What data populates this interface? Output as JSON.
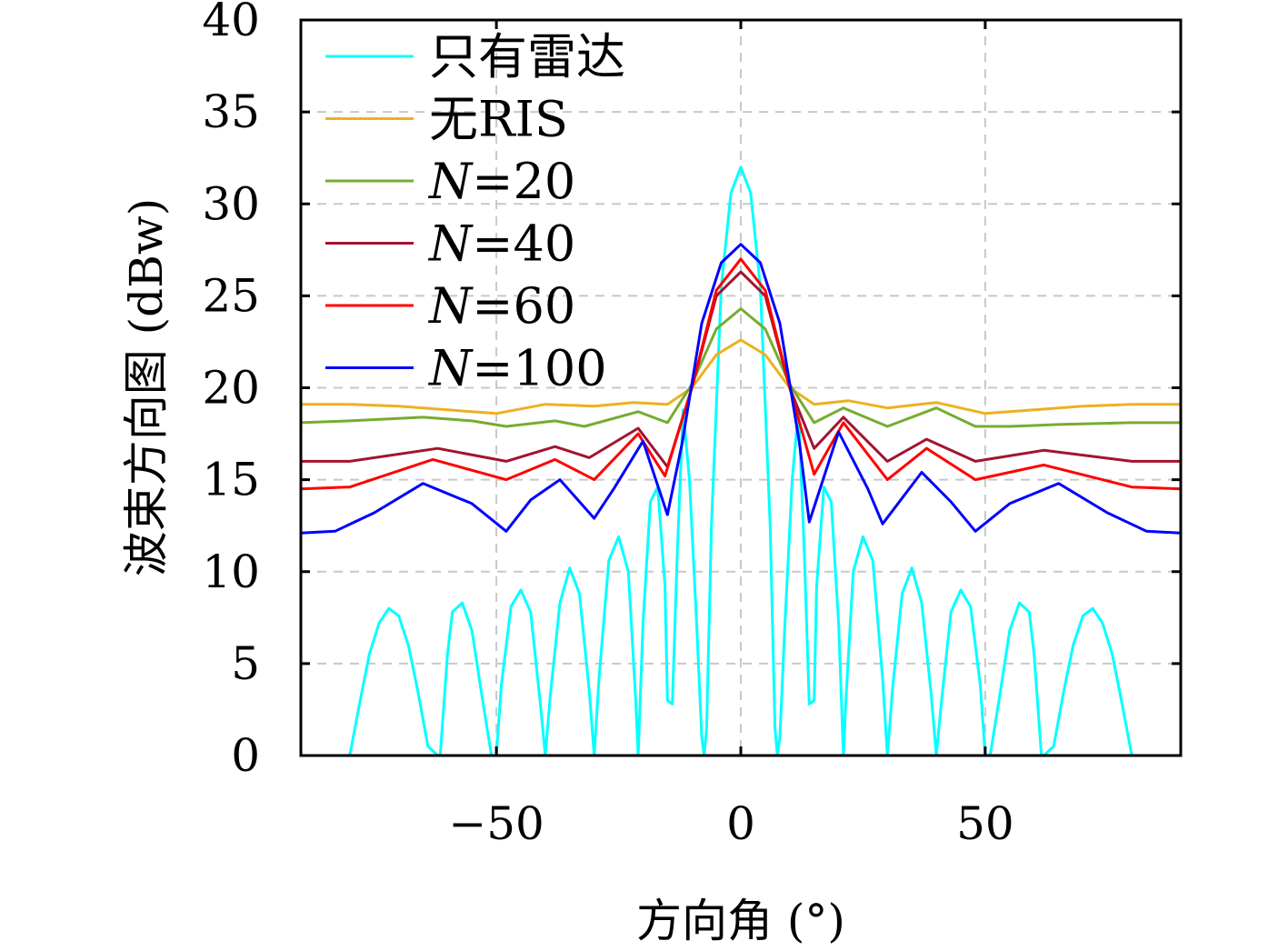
{
  "chart_data": {
    "type": "line",
    "title": "",
    "xlabel": "方向角 (°)",
    "ylabel": "波束方向图 (dBw)",
    "xlim": [
      -90,
      90
    ],
    "ylim": [
      0,
      40
    ],
    "xticks": [
      -50,
      0,
      50
    ],
    "xtick_labels": [
      "−50",
      "0",
      "50"
    ],
    "yticks": [
      0,
      5,
      10,
      15,
      20,
      25,
      30,
      35,
      40
    ],
    "ytick_labels": [
      "0",
      "5",
      "10",
      "15",
      "20",
      "25",
      "30",
      "35",
      "40"
    ],
    "grid": true,
    "legend_position": "top-left",
    "series": [
      {
        "name": "只有雷达",
        "color": "#00ffff",
        "x": [
          -80,
          -78,
          -76,
          -74,
          -72,
          -70,
          -68,
          -66,
          -64,
          -62,
          -61.5,
          -60,
          -59,
          -57,
          -55,
          -53,
          -51,
          -50,
          -49,
          -47,
          -45,
          -43,
          -41,
          -40,
          -39,
          -37,
          -35,
          -33,
          -31,
          -30,
          -29,
          -27,
          -25,
          -23,
          -21.5,
          -21,
          -20,
          -18.5,
          -17,
          -15.5,
          -15,
          -14,
          -13,
          -11.8,
          -10.5,
          -9,
          -8,
          -7.5,
          -7,
          -6,
          -4,
          -2,
          0,
          2,
          4,
          6,
          7,
          7.5,
          8,
          9,
          10.5,
          11.8,
          13,
          14,
          15,
          15.5,
          17,
          18.5,
          20,
          21,
          21.5,
          23,
          25,
          27,
          29,
          30,
          31,
          33,
          35,
          37,
          39,
          40,
          41,
          43,
          45,
          47,
          49,
          50,
          51,
          53,
          55,
          57,
          59,
          60,
          61.5,
          62,
          64,
          66,
          68,
          70,
          72,
          74,
          76,
          78,
          80
        ],
        "y": [
          0,
          2.8,
          5.5,
          7.2,
          8.0,
          7.6,
          6.0,
          3.4,
          0.5,
          0,
          0,
          5.5,
          7.8,
          8.3,
          6.8,
          3.3,
          0,
          0,
          3.8,
          8.1,
          9.0,
          7.8,
          2.8,
          0,
          3.2,
          8.3,
          10.2,
          8.8,
          3.5,
          0,
          4.2,
          10.6,
          11.9,
          10.0,
          3.0,
          0,
          7.2,
          13.8,
          14.6,
          9.2,
          3.0,
          2.8,
          11.0,
          18.8,
          15.0,
          7.0,
          1.0,
          0,
          1.5,
          12.5,
          25.5,
          30.6,
          32.0,
          30.6,
          25.5,
          12.5,
          1.5,
          0,
          1.0,
          7.0,
          15.0,
          18.8,
          11.0,
          2.8,
          3.0,
          9.2,
          14.6,
          13.8,
          7.2,
          0,
          3.0,
          10.0,
          11.9,
          10.6,
          4.2,
          0,
          3.5,
          8.8,
          10.2,
          8.3,
          3.2,
          0,
          2.8,
          7.8,
          9.0,
          8.1,
          3.8,
          0,
          0,
          3.3,
          6.8,
          8.3,
          7.8,
          5.5,
          0,
          0,
          0.5,
          3.4,
          6.0,
          7.6,
          8.0,
          7.2,
          5.5,
          2.8,
          0
        ]
      },
      {
        "name": "无RIS",
        "color": "#edb120",
        "x": [
          -90,
          -80,
          -70,
          -60,
          -50,
          -40,
          -30,
          -22,
          -15,
          -10,
          -5,
          0,
          5,
          10,
          15,
          22,
          30,
          40,
          50,
          60,
          70,
          80,
          90
        ],
        "y": [
          19.1,
          19.1,
          19.0,
          18.8,
          18.6,
          19.1,
          19.0,
          19.2,
          19.1,
          20.0,
          21.8,
          22.6,
          21.8,
          20.0,
          19.1,
          19.3,
          18.9,
          19.2,
          18.6,
          18.8,
          19.0,
          19.1,
          19.1
        ]
      },
      {
        "name": "N=20",
        "color": "#77ac30",
        "x": [
          -90,
          -80,
          -65,
          -55,
          -48,
          -38,
          -32,
          -21,
          -15,
          -10,
          -5,
          0,
          5,
          10,
          15,
          21,
          30,
          40,
          48,
          55,
          65,
          80,
          90
        ],
        "y": [
          18.1,
          18.2,
          18.4,
          18.2,
          17.9,
          18.2,
          17.9,
          18.7,
          18.1,
          20.2,
          23.2,
          24.3,
          23.2,
          20.2,
          18.1,
          18.9,
          17.9,
          18.9,
          17.9,
          17.9,
          18.0,
          18.1,
          18.1
        ]
      },
      {
        "name": "N=40",
        "color": "#a2142f",
        "x": [
          -90,
          -80,
          -62,
          -48,
          -38,
          -31,
          -21,
          -15,
          -10,
          -5,
          0,
          5,
          10,
          15,
          21,
          30,
          38,
          48,
          62,
          80,
          90
        ],
        "y": [
          16.0,
          16.0,
          16.7,
          16.0,
          16.8,
          16.2,
          17.8,
          15.7,
          20.0,
          25.0,
          26.3,
          25.0,
          20.0,
          16.7,
          18.4,
          16.0,
          17.2,
          16.0,
          16.6,
          16.0,
          16.0
        ]
      },
      {
        "name": "N=60",
        "color": "#ff0000",
        "x": [
          -90,
          -80,
          -63,
          -48,
          -38,
          -30,
          -21,
          -15.5,
          -10,
          -5,
          0,
          5,
          10,
          15,
          21,
          30,
          38,
          48,
          62,
          80,
          90
        ],
        "y": [
          14.5,
          14.6,
          16.1,
          15.0,
          16.1,
          15.0,
          17.5,
          15.2,
          20.0,
          25.3,
          27.0,
          25.3,
          20.0,
          15.3,
          18.1,
          15.0,
          16.7,
          15.0,
          15.8,
          14.6,
          14.5
        ]
      },
      {
        "name": "N=100",
        "color": "#0000ff",
        "x": [
          -90,
          -83,
          -75,
          -65,
          -55,
          -48,
          -43,
          -37,
          -30,
          -26,
          -20,
          -15,
          -12,
          -8,
          -4,
          0,
          4,
          8,
          12,
          14,
          20,
          26,
          29,
          37,
          43,
          48,
          55,
          65,
          75,
          83,
          90
        ],
        "y": [
          12.1,
          12.2,
          13.2,
          14.8,
          13.7,
          12.2,
          13.9,
          15.0,
          12.9,
          14.5,
          17.1,
          13.1,
          17.0,
          23.5,
          26.8,
          27.8,
          26.8,
          23.5,
          17.0,
          12.7,
          17.6,
          14.5,
          12.6,
          15.4,
          13.8,
          12.2,
          13.7,
          14.8,
          13.2,
          12.2,
          12.1
        ]
      }
    ]
  }
}
